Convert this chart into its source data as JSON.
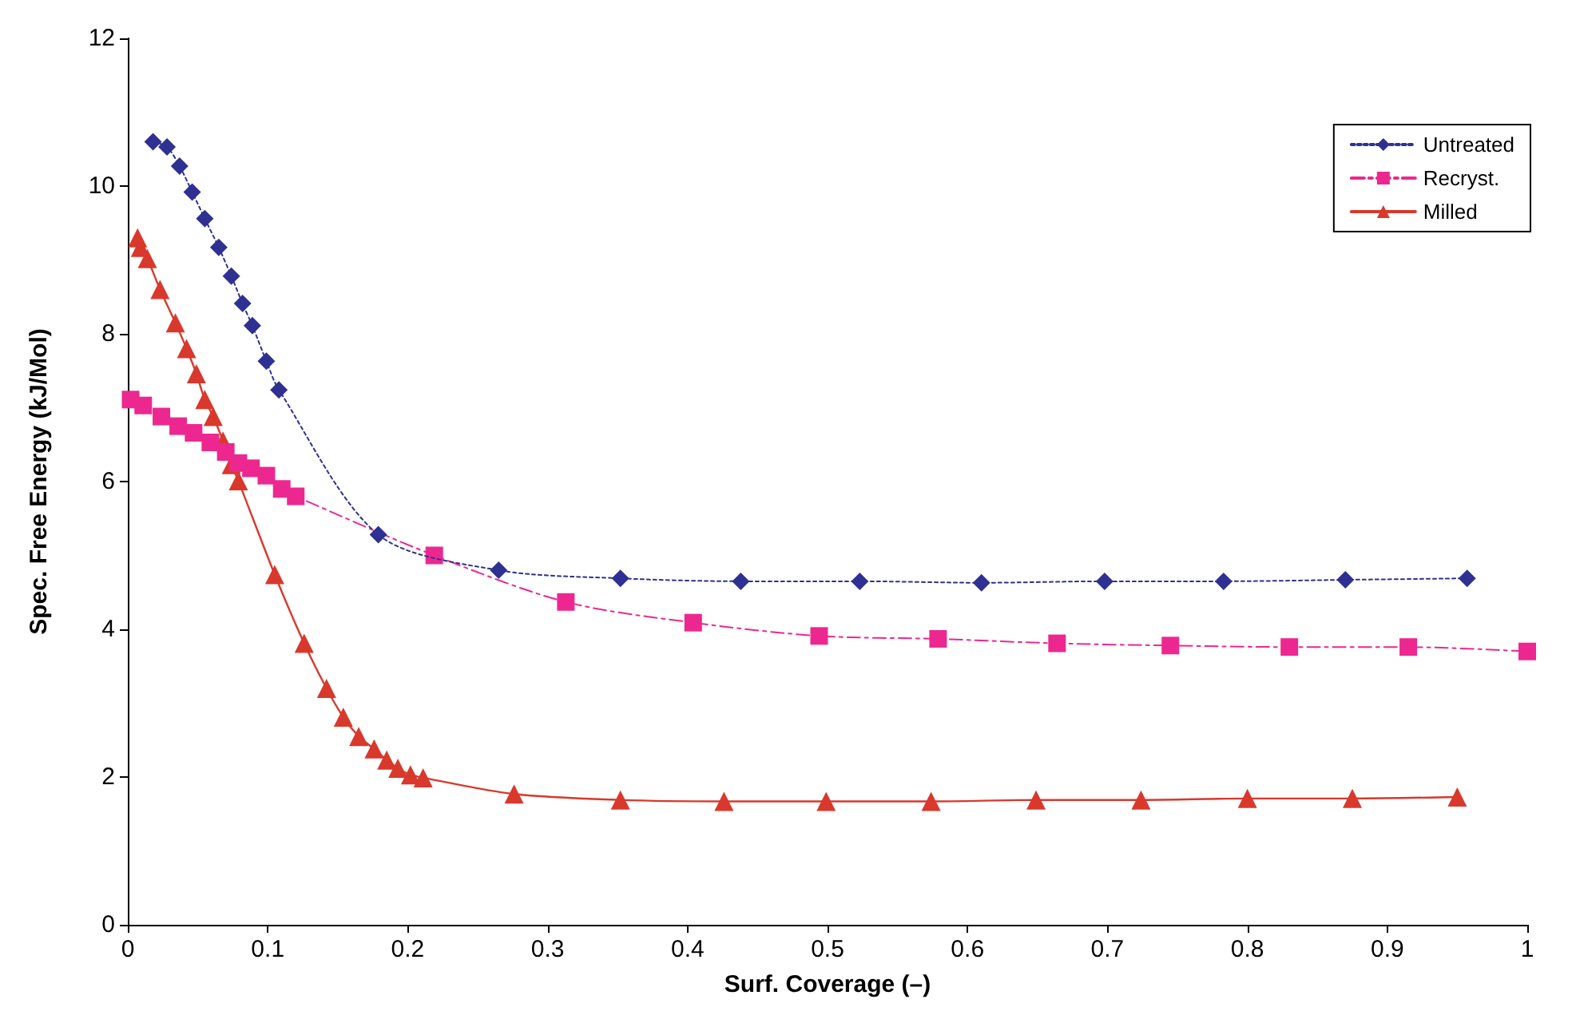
{
  "chart_data": {
    "type": "line",
    "xlabel": "Surf. Coverage (–)",
    "ylabel": "Spec. Free Energy (kJ/Mol)",
    "xlim": [
      0,
      1
    ],
    "ylim": [
      0,
      12
    ],
    "xticks": [
      0,
      0.1,
      0.2,
      0.3,
      0.4,
      0.5,
      0.6,
      0.7,
      0.8,
      0.9,
      1
    ],
    "yticks": [
      0,
      2,
      4,
      6,
      8,
      10,
      12
    ],
    "grid": false,
    "legend": "top right",
    "series": [
      {
        "name": "Untreated",
        "color": "#2e3192",
        "marker": "diamond",
        "line_style": "dotted",
        "x": [
          0.018,
          0.028,
          0.037,
          0.046,
          0.055,
          0.065,
          0.074,
          0.082,
          0.089,
          0.099,
          0.108,
          0.179,
          0.265,
          0.352,
          0.438,
          0.523,
          0.61,
          0.698,
          0.783,
          0.87,
          0.957
        ],
        "values": [
          10.6,
          10.53,
          10.27,
          9.92,
          9.56,
          9.17,
          8.78,
          8.41,
          8.11,
          7.63,
          7.24,
          5.28,
          4.8,
          4.69,
          4.65,
          4.65,
          4.63,
          4.65,
          4.65,
          4.67,
          4.69
        ]
      },
      {
        "name": "Recryst.",
        "color": "#ec2890",
        "marker": "square",
        "line_style": "dashed",
        "x": [
          0.002,
          0.011,
          0.024,
          0.036,
          0.047,
          0.059,
          0.07,
          0.079,
          0.088,
          0.099,
          0.11,
          0.12,
          0.219,
          0.313,
          0.404,
          0.494,
          0.579,
          0.664,
          0.745,
          0.83,
          0.915,
          1.0
        ],
        "values": [
          7.11,
          7.03,
          6.88,
          6.75,
          6.66,
          6.53,
          6.4,
          6.25,
          6.18,
          6.08,
          5.9,
          5.8,
          5.0,
          4.37,
          4.09,
          3.91,
          3.87,
          3.81,
          3.78,
          3.76,
          3.76,
          3.7
        ]
      },
      {
        "name": "Milled",
        "color": "#d9382c",
        "marker": "triangle",
        "line_style": "solid",
        "x": [
          0.007,
          0.009,
          0.014,
          0.023,
          0.034,
          0.042,
          0.049,
          0.055,
          0.061,
          0.068,
          0.074,
          0.079,
          0.105,
          0.126,
          0.142,
          0.154,
          0.165,
          0.176,
          0.185,
          0.193,
          0.202,
          0.211,
          0.276,
          0.352,
          0.426,
          0.499,
          0.574,
          0.649,
          0.724,
          0.8,
          0.875,
          0.95
        ],
        "values": [
          9.3,
          9.17,
          9.02,
          8.6,
          8.15,
          7.8,
          7.46,
          7.11,
          6.88,
          6.55,
          6.23,
          6.01,
          4.74,
          3.81,
          3.2,
          2.81,
          2.55,
          2.38,
          2.23,
          2.12,
          2.03,
          1.99,
          1.77,
          1.69,
          1.67,
          1.67,
          1.67,
          1.69,
          1.69,
          1.71,
          1.71,
          1.73
        ]
      }
    ]
  }
}
